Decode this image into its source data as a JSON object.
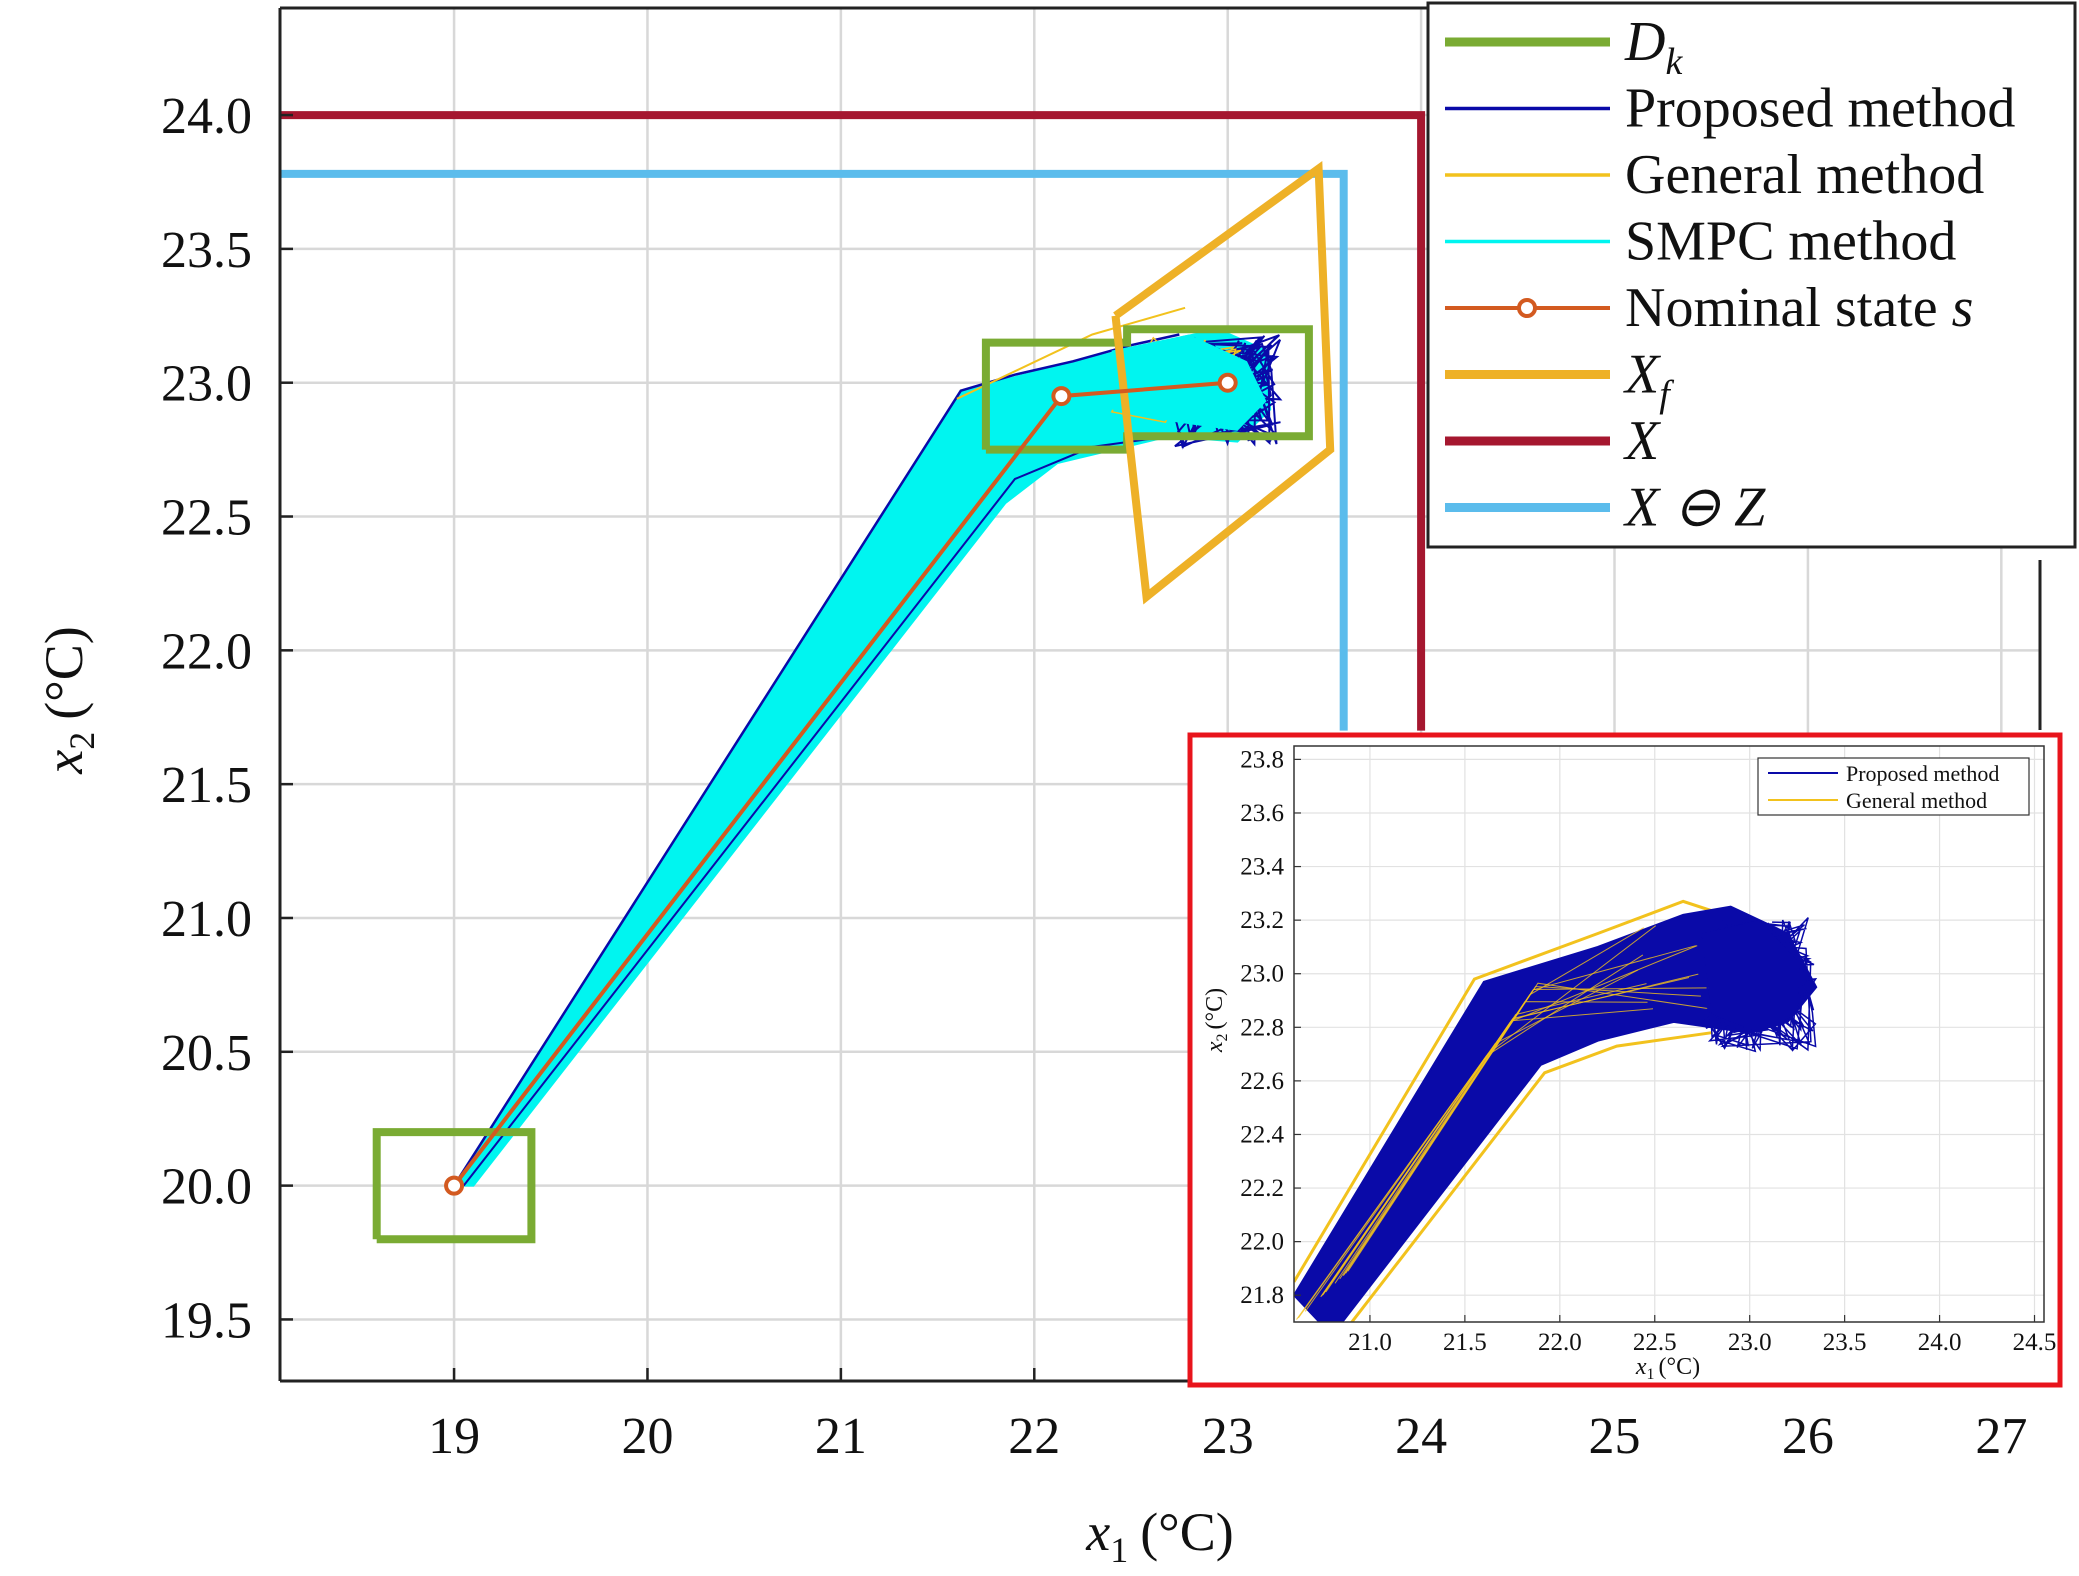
{
  "colors": {
    "proposed": "#0a0aa8",
    "general": "#f2c21d",
    "smpc": "#00f5f0",
    "nominal": "#d35a20",
    "dk": "#7aab33",
    "xf": "#eeb127",
    "X": "#a5172f",
    "xz": "#5bbcec",
    "inset_border": "#e8141c",
    "grid": "#d8d8d8"
  },
  "chart_data": [
    {
      "id": "main",
      "type": "line",
      "title": "",
      "xlabel_var": "x",
      "xlabel_sub": "1",
      "xlabel_unit": "(°C)",
      "ylabel_var": "x",
      "ylabel_sub": "2",
      "ylabel_unit": "(°C)",
      "xlim": [
        18.1,
        27.2
      ],
      "ylim": [
        19.27,
        24.4
      ],
      "xticks": [
        "19",
        "20",
        "21",
        "22",
        "23",
        "24",
        "25",
        "26",
        "27"
      ],
      "xtick_values": [
        19,
        20,
        21,
        22,
        23,
        24,
        25,
        26,
        27
      ],
      "yticks": [
        "19.5",
        "20.0",
        "20.5",
        "21.0",
        "21.5",
        "22.0",
        "22.5",
        "23.0",
        "23.5",
        "24.0"
      ],
      "ytick_values": [
        19.5,
        20.0,
        20.5,
        21.0,
        21.5,
        22.0,
        22.5,
        23.0,
        23.5,
        24.0
      ],
      "grid": true,
      "legend_position": "top-right",
      "legend": [
        {
          "key": "dk",
          "label": "D",
          "sub": "k",
          "italic": true
        },
        {
          "key": "proposed",
          "label": "Proposed method",
          "italic": false
        },
        {
          "key": "general",
          "label": "General method",
          "italic": false
        },
        {
          "key": "smpc",
          "label": "SMPC method",
          "italic": false
        },
        {
          "key": "nominal",
          "label": "Nominal state ",
          "suffix": "s",
          "italic": false,
          "marker": true
        },
        {
          "key": "xf",
          "label": "X",
          "sub": "f",
          "italic": true
        },
        {
          "key": "X",
          "label": "X",
          "italic": true
        },
        {
          "key": "xz",
          "label": "X ⊖ Z",
          "italic": true
        }
      ],
      "series": {
        "dk_initial": [
          [
            18.6,
            19.8
          ],
          [
            19.4,
            19.8
          ],
          [
            19.4,
            20.2
          ],
          [
            18.6,
            20.2
          ],
          [
            18.6,
            19.8
          ]
        ],
        "dk_target": [
          [
            21.75,
            22.75
          ],
          [
            22.48,
            22.75
          ],
          [
            22.48,
            22.8
          ],
          [
            23.42,
            22.8
          ],
          [
            23.42,
            23.2
          ],
          [
            22.48,
            23.2
          ],
          [
            22.48,
            23.15
          ],
          [
            21.75,
            23.15
          ],
          [
            21.75,
            22.75
          ]
        ],
        "xf": [
          [
            22.42,
            23.25
          ],
          [
            23.47,
            23.8
          ],
          [
            23.53,
            22.75
          ],
          [
            22.58,
            22.2
          ],
          [
            22.42,
            23.25
          ]
        ],
        "X": [
          [
            18.1,
            24.0
          ],
          [
            24.0,
            24.0
          ],
          [
            24.0,
            21.7
          ]
        ],
        "x_minus_z": [
          [
            18.1,
            23.78
          ],
          [
            23.6,
            23.78
          ],
          [
            23.6,
            21.7
          ]
        ],
        "nominal_state": [
          [
            19.0,
            20.0
          ],
          [
            22.14,
            22.95
          ],
          [
            23.0,
            23.0
          ]
        ],
        "smpc_envelope": [
          [
            19.0,
            20.0
          ],
          [
            21.62,
            22.97
          ],
          [
            22.45,
            23.12
          ],
          [
            22.95,
            23.2
          ],
          [
            23.2,
            23.12
          ],
          [
            23.22,
            22.9
          ],
          [
            23.05,
            22.78
          ],
          [
            22.7,
            22.8
          ],
          [
            22.12,
            22.7
          ],
          [
            21.85,
            22.55
          ],
          [
            19.1,
            20.0
          ]
        ],
        "proposed_outline": [
          [
            19.0,
            20.0
          ],
          [
            21.62,
            22.97
          ],
          [
            21.9,
            23.03
          ],
          [
            22.2,
            23.08
          ],
          [
            22.5,
            23.14
          ],
          [
            22.75,
            23.18
          ]
        ],
        "proposed_lower": [
          [
            19.05,
            20.0
          ],
          [
            21.9,
            22.64
          ],
          [
            22.3,
            22.76
          ],
          [
            22.6,
            22.79
          ],
          [
            22.9,
            22.8
          ]
        ],
        "general_edges": [
          [
            21.6,
            22.94
          ],
          [
            22.3,
            23.18
          ],
          [
            22.78,
            23.28
          ]
        ],
        "proposed_cluster_center": [
          23.0,
          22.97
        ],
        "general_markers_note": ""
      }
    },
    {
      "id": "inset",
      "type": "line",
      "title": "",
      "xlabel_var": "x",
      "xlabel_sub": "1",
      "xlabel_unit": "(°C)",
      "ylabel_var": "x",
      "ylabel_sub": "2",
      "ylabel_unit": "(°C)",
      "xlim": [
        20.6,
        24.55
      ],
      "ylim": [
        21.7,
        23.85
      ],
      "xticks": [
        "21.0",
        "21.5",
        "22.0",
        "22.5",
        "23.0",
        "23.5",
        "24.0",
        "24.5"
      ],
      "xtick_values": [
        21.0,
        21.5,
        22.0,
        22.5,
        23.0,
        23.5,
        24.0,
        24.5
      ],
      "yticks": [
        "21.8",
        "22.0",
        "22.2",
        "22.4",
        "22.6",
        "22.8",
        "23.0",
        "23.2",
        "23.4",
        "23.6",
        "23.8"
      ],
      "ytick_values": [
        21.8,
        22.0,
        22.2,
        22.4,
        22.6,
        22.8,
        23.0,
        23.2,
        23.4,
        23.6,
        23.8
      ],
      "grid": true,
      "legend_position": "top-right",
      "legend": [
        {
          "key": "proposed",
          "label": "Proposed method"
        },
        {
          "key": "general",
          "label": "General method"
        }
      ],
      "series": {
        "band_upper": [
          [
            20.6,
            21.8
          ],
          [
            21.6,
            22.97
          ],
          [
            22.2,
            23.1
          ],
          [
            22.65,
            23.22
          ],
          [
            22.9,
            23.25
          ],
          [
            23.2,
            23.15
          ],
          [
            23.35,
            22.95
          ]
        ],
        "band_lower": [
          [
            23.35,
            22.95
          ],
          [
            23.2,
            22.82
          ],
          [
            23.0,
            22.78
          ],
          [
            22.6,
            22.82
          ],
          [
            22.2,
            22.75
          ],
          [
            21.9,
            22.66
          ],
          [
            20.8,
            21.65
          ]
        ],
        "general_upper": [
          [
            20.6,
            21.85
          ],
          [
            21.55,
            22.98
          ],
          [
            22.2,
            23.15
          ],
          [
            22.65,
            23.27
          ],
          [
            22.95,
            23.2
          ]
        ],
        "general_lower": [
          [
            20.85,
            21.65
          ],
          [
            21.92,
            22.63
          ],
          [
            22.3,
            22.73
          ],
          [
            22.8,
            22.78
          ]
        ],
        "cluster_center": [
          23.05,
          22.96
        ]
      }
    }
  ]
}
